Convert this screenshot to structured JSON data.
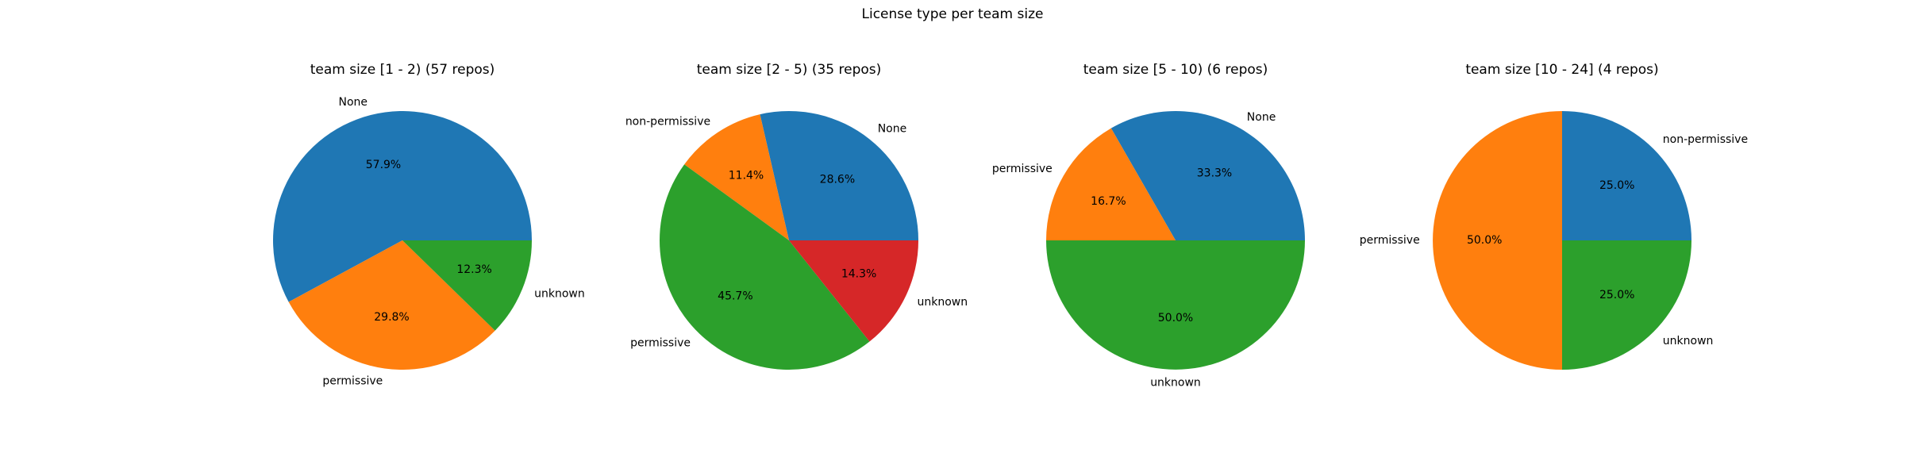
{
  "figure_title": "License type per team size",
  "colors": {
    "blue": "#1f77b4",
    "orange": "#ff7f0e",
    "green": "#2ca02c",
    "red": "#d62728"
  },
  "chart_data": [
    {
      "type": "pie",
      "title": "team size [1 - 2) (57 repos)",
      "slices": [
        {
          "label": "None",
          "value": 57.9,
          "pct_label": "57.9%",
          "color": "#1f77b4"
        },
        {
          "label": "permissive",
          "value": 29.8,
          "pct_label": "29.8%",
          "color": "#ff7f0e"
        },
        {
          "label": "unknown",
          "value": 12.3,
          "pct_label": "12.3%",
          "color": "#2ca02c"
        }
      ]
    },
    {
      "type": "pie",
      "title": "team size [2 - 5) (35 repos)",
      "slices": [
        {
          "label": "None",
          "value": 28.6,
          "pct_label": "28.6%",
          "color": "#1f77b4"
        },
        {
          "label": "non-permissive",
          "value": 11.4,
          "pct_label": "11.4%",
          "color": "#ff7f0e"
        },
        {
          "label": "permissive",
          "value": 45.7,
          "pct_label": "45.7%",
          "color": "#2ca02c"
        },
        {
          "label": "unknown",
          "value": 14.3,
          "pct_label": "14.3%",
          "color": "#d62728"
        }
      ]
    },
    {
      "type": "pie",
      "title": "team size [5 - 10) (6 repos)",
      "slices": [
        {
          "label": "None",
          "value": 33.3,
          "pct_label": "33.3%",
          "color": "#1f77b4"
        },
        {
          "label": "permissive",
          "value": 16.7,
          "pct_label": "16.7%",
          "color": "#ff7f0e"
        },
        {
          "label": "unknown",
          "value": 50.0,
          "pct_label": "50.0%",
          "color": "#2ca02c"
        }
      ]
    },
    {
      "type": "pie",
      "title": "team size [10 - 24] (4 repos)",
      "slices": [
        {
          "label": "non-permissive",
          "value": 25.0,
          "pct_label": "25.0%",
          "color": "#1f77b4"
        },
        {
          "label": "permissive",
          "value": 50.0,
          "pct_label": "50.0%",
          "color": "#ff7f0e"
        },
        {
          "label": "unknown",
          "value": 25.0,
          "pct_label": "25.0%",
          "color": "#2ca02c"
        }
      ]
    }
  ]
}
